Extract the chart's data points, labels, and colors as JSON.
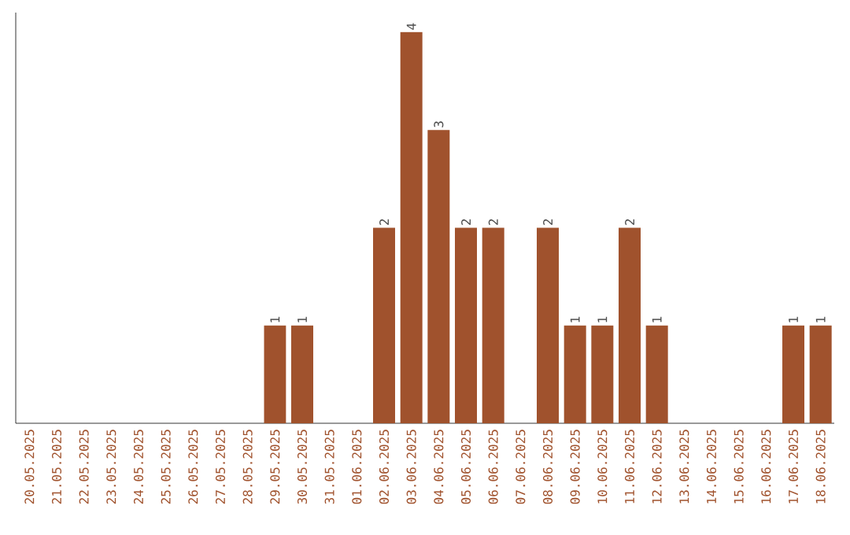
{
  "chart_data": {
    "type": "bar",
    "categories": [
      "20.05.2025",
      "21.05.2025",
      "22.05.2025",
      "23.05.2025",
      "24.05.2025",
      "25.05.2025",
      "26.05.2025",
      "27.05.2025",
      "28.05.2025",
      "29.05.2025",
      "30.05.2025",
      "31.05.2025",
      "01.06.2025",
      "02.06.2025",
      "03.06.2025",
      "04.06.2025",
      "05.06.2025",
      "06.06.2025",
      "07.06.2025",
      "08.06.2025",
      "09.06.2025",
      "10.06.2025",
      "11.06.2025",
      "12.06.2025",
      "13.06.2025",
      "14.06.2025",
      "15.06.2025",
      "16.06.2025",
      "17.06.2025",
      "18.06.2025"
    ],
    "values": [
      null,
      null,
      null,
      null,
      null,
      null,
      null,
      null,
      null,
      1,
      1,
      null,
      null,
      2,
      4,
      3,
      2,
      2,
      null,
      2,
      1,
      1,
      2,
      1,
      null,
      null,
      null,
      null,
      1,
      1
    ],
    "color": "#a0522d",
    "ylim": [
      0,
      4.2
    ],
    "data_labels": true,
    "tick_labels": "x"
  }
}
